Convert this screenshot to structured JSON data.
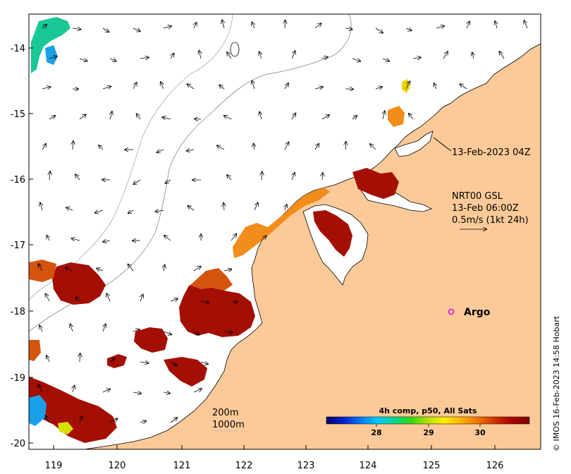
{
  "map": {
    "lon_ticks": [
      "119",
      "120",
      "121",
      "122",
      "123",
      "124",
      "125",
      "126"
    ],
    "lat_ticks": [
      "-14",
      "-15",
      "-16",
      "-17",
      "-18",
      "-19",
      "-20"
    ],
    "colors": {
      "land": "#fcca98",
      "sst_hot": "#a40f04",
      "sst_warm": "#d4540e",
      "argo": "#e000e0"
    }
  },
  "annotations": {
    "obs_time": "13-Feb-2023 04Z",
    "current_source": "NRT00 GSL",
    "current_time": "13-Feb 06:00Z",
    "current_scale": "0.5m/s (1kt 24h)",
    "argo_label": "Argo",
    "contour_200": "200m",
    "contour_1000": "1000m"
  },
  "colorbar": {
    "title": "4h comp, p50, All Sats",
    "ticks": [
      "28",
      "29",
      "30"
    ],
    "stops": [
      "#08006a",
      "#0021c8",
      "#0078ff",
      "#00c8ff",
      "#00d890",
      "#36d810",
      "#b4e400",
      "#ffee00",
      "#ffb000",
      "#f07000",
      "#d03000",
      "#a80000",
      "#7d0000"
    ]
  },
  "credit": "© IMOS 16-Feb-2023 14:58 Hobart"
}
